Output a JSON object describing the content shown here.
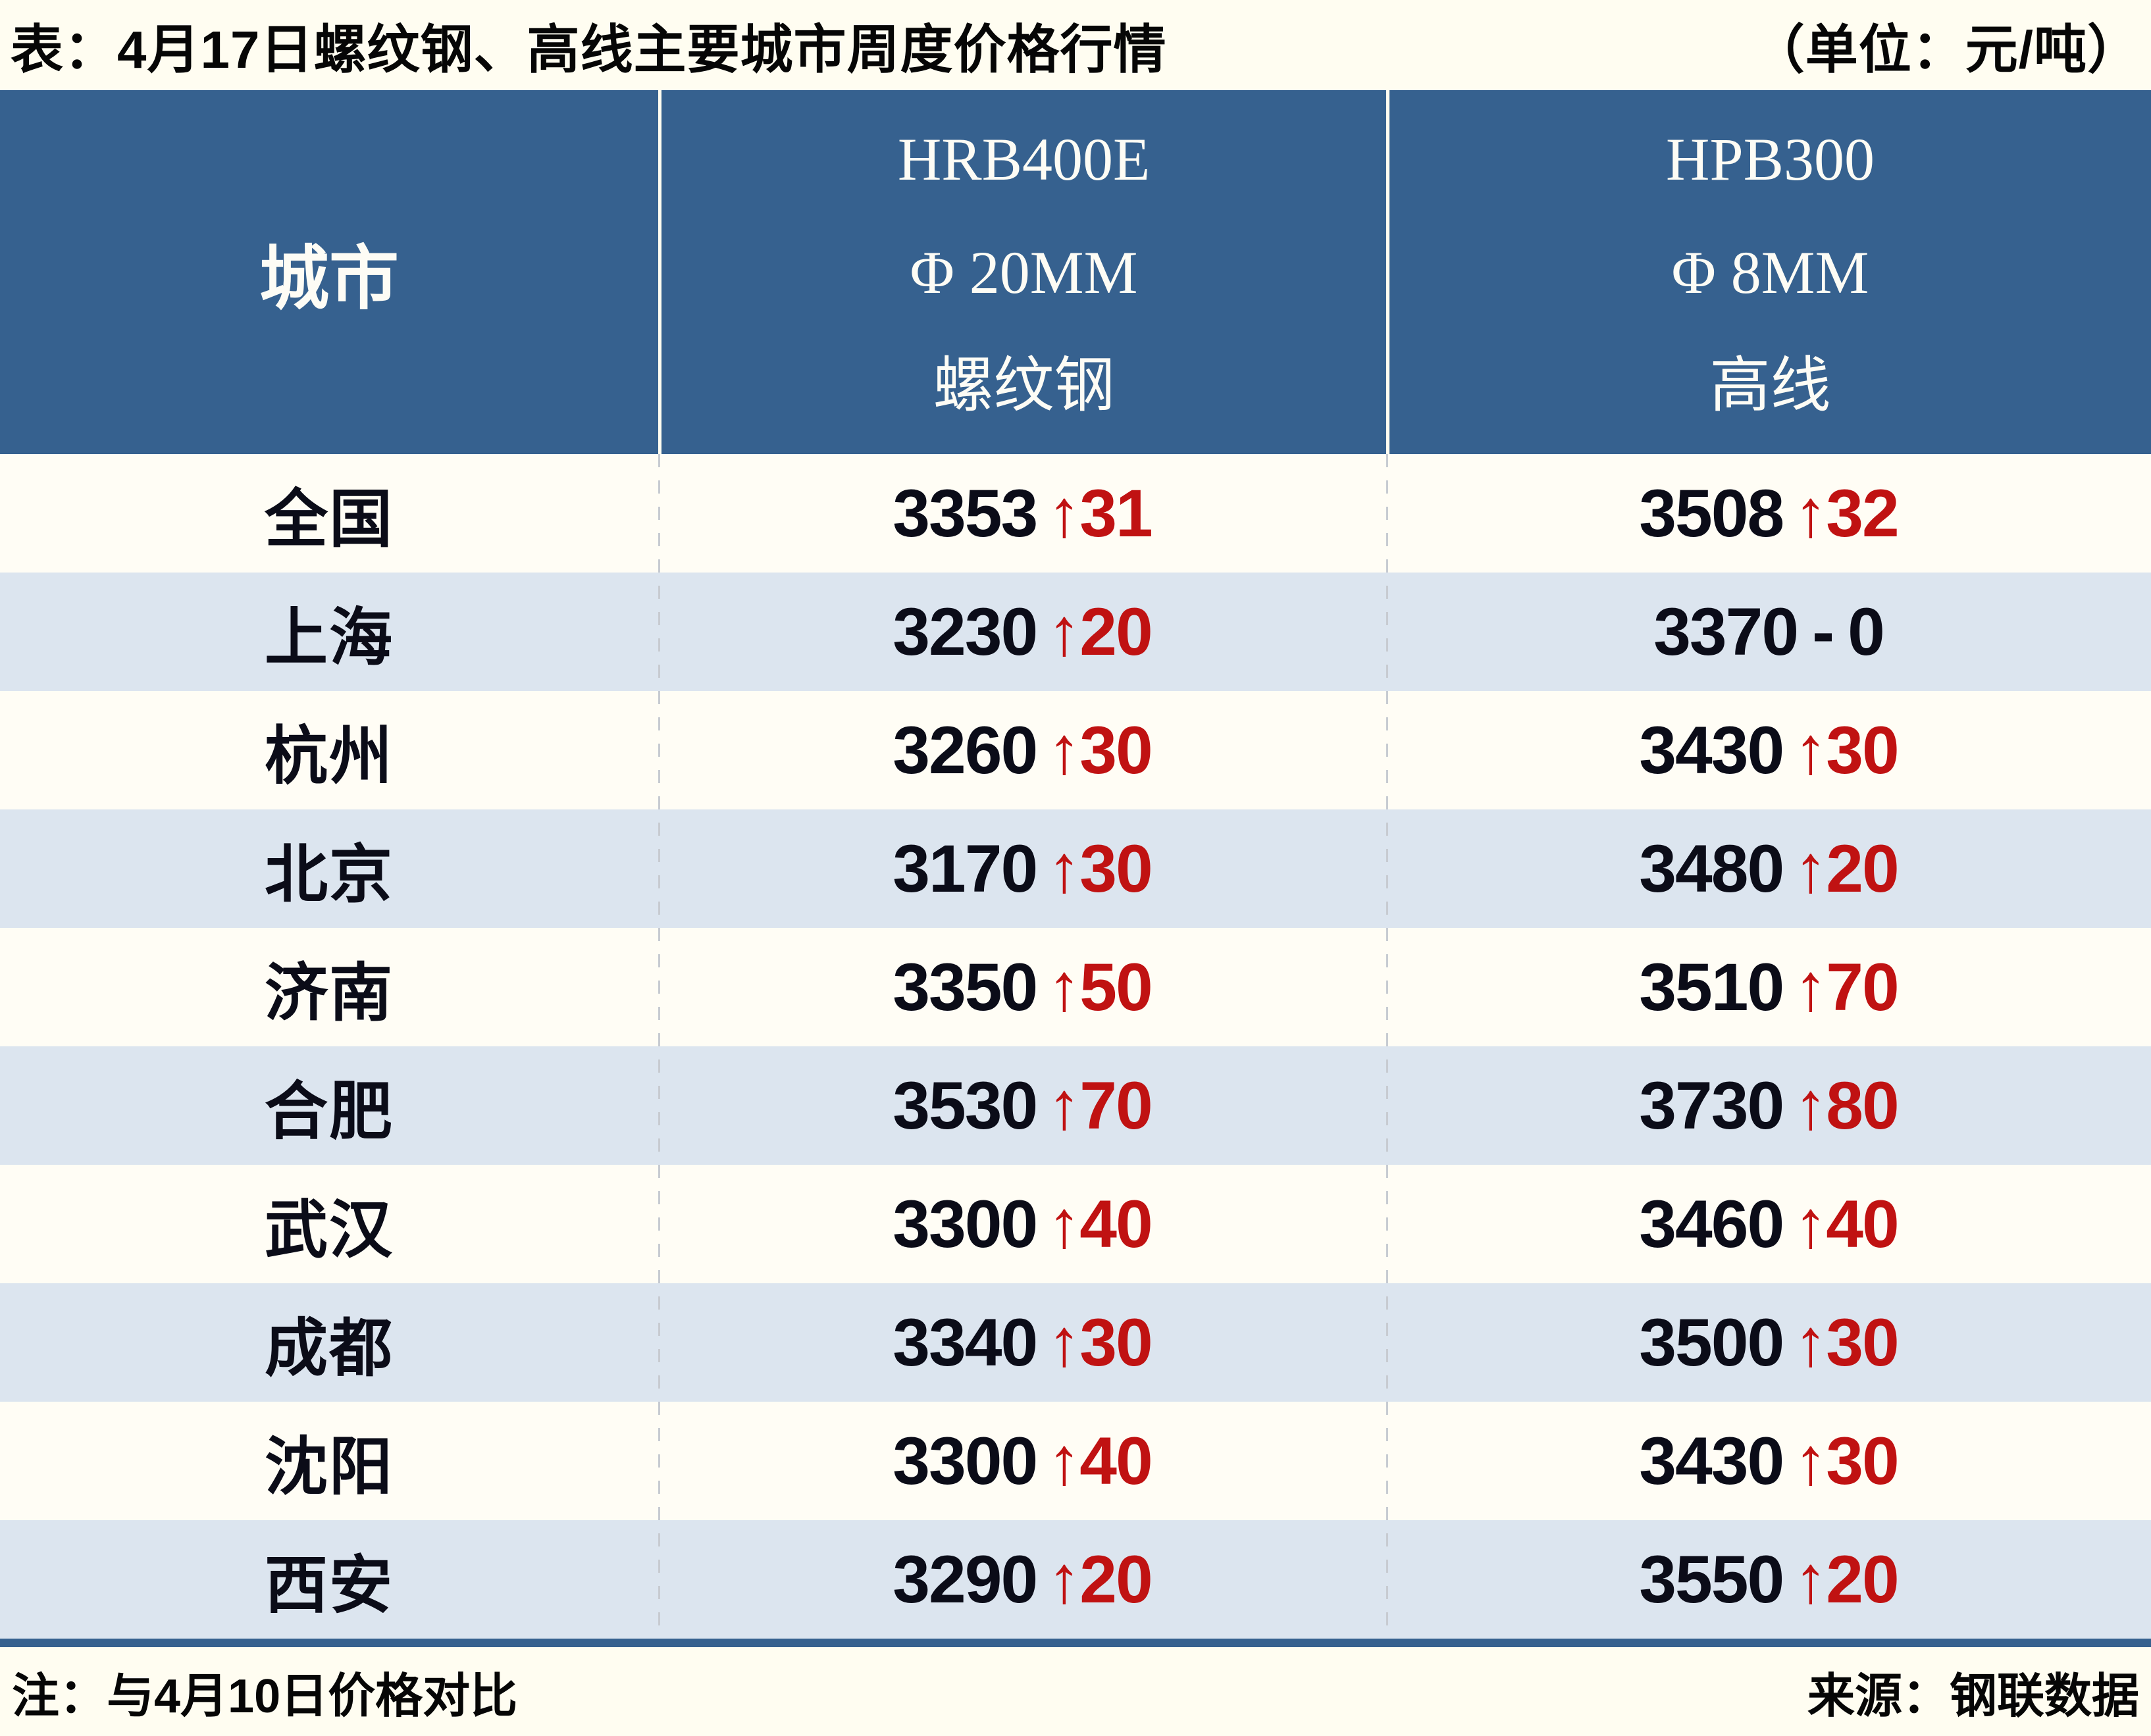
{
  "title": {
    "text": "表：4月17日螺纹钢、高线主要城市周度价格行情",
    "unit": "（单位：元/吨）"
  },
  "header": {
    "city": "城市",
    "col2": [
      "HRB400E",
      "Φ 20MM",
      "螺纹钢"
    ],
    "col3": [
      "HPB300",
      "Φ 8MM",
      "高线"
    ]
  },
  "footer": {
    "note": "注：与4月10日价格对比",
    "source": "来源：钢联数据"
  },
  "colors": {
    "page_background": "#FFFDF1",
    "header_blue": "#36618F",
    "row_white": "#FFFDF5",
    "row_blue": "#DCE5EF",
    "price_text": "#0B0C18",
    "change_red": "#C01212",
    "dashed_line": "#C7CBD1"
  },
  "chart_data": {
    "type": "table",
    "title": "4月17日螺纹钢、高线主要城市周度价格行情",
    "unit": "元/吨",
    "columns": [
      "城市",
      "HRB400E Φ20MM 螺纹钢",
      "HPB300 Φ8MM 高线"
    ],
    "note": "与4月10日价格对比",
    "source": "钢联数据",
    "rows": [
      {
        "city": "全国",
        "rebar": {
          "price": 3353,
          "change": 31,
          "dir": "up"
        },
        "wire": {
          "price": 3508,
          "change": 32,
          "dir": "up"
        }
      },
      {
        "city": "上海",
        "rebar": {
          "price": 3230,
          "change": 20,
          "dir": "up"
        },
        "wire": {
          "price": 3370,
          "change": 0,
          "dir": "flat"
        }
      },
      {
        "city": "杭州",
        "rebar": {
          "price": 3260,
          "change": 30,
          "dir": "up"
        },
        "wire": {
          "price": 3430,
          "change": 30,
          "dir": "up"
        }
      },
      {
        "city": "北京",
        "rebar": {
          "price": 3170,
          "change": 30,
          "dir": "up"
        },
        "wire": {
          "price": 3480,
          "change": 20,
          "dir": "up"
        }
      },
      {
        "city": "济南",
        "rebar": {
          "price": 3350,
          "change": 50,
          "dir": "up"
        },
        "wire": {
          "price": 3510,
          "change": 70,
          "dir": "up"
        }
      },
      {
        "city": "合肥",
        "rebar": {
          "price": 3530,
          "change": 70,
          "dir": "up"
        },
        "wire": {
          "price": 3730,
          "change": 80,
          "dir": "up"
        }
      },
      {
        "city": "武汉",
        "rebar": {
          "price": 3300,
          "change": 40,
          "dir": "up"
        },
        "wire": {
          "price": 3460,
          "change": 40,
          "dir": "up"
        }
      },
      {
        "city": "成都",
        "rebar": {
          "price": 3340,
          "change": 30,
          "dir": "up"
        },
        "wire": {
          "price": 3500,
          "change": 30,
          "dir": "up"
        }
      },
      {
        "city": "沈阳",
        "rebar": {
          "price": 3300,
          "change": 40,
          "dir": "up"
        },
        "wire": {
          "price": 3430,
          "change": 30,
          "dir": "up"
        }
      },
      {
        "city": "西安",
        "rebar": {
          "price": 3290,
          "change": 20,
          "dir": "up"
        },
        "wire": {
          "price": 3550,
          "change": 20,
          "dir": "up"
        }
      }
    ]
  }
}
